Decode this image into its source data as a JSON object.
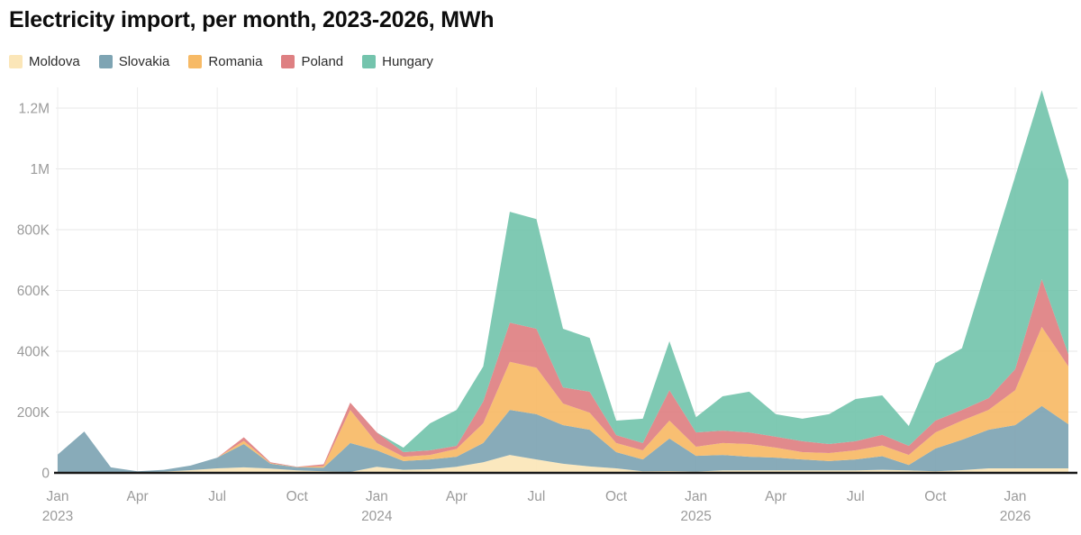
{
  "header": {
    "title": "Electricity import, per month, 2023-2026, MWh"
  },
  "colors": {
    "title": "#0d0d0d",
    "legend_text": "#2b2b2b",
    "axis_label": "#9b9b9b",
    "gridline_h": "#e7e7e7",
    "gridline_v": "#ededed",
    "baseline": "#1a1a1a",
    "background": "#ffffff"
  },
  "chart_data": {
    "type": "area",
    "stacked": true,
    "title": "Electricity import, per month, 2023-2026, MWh",
    "unit": "MWh",
    "grid": true,
    "legend_position": "top-left",
    "ylim": [
      0,
      1260000
    ],
    "x": [
      "Jan 2023",
      "Feb 2023",
      "Mar 2023",
      "Apr 2023",
      "May 2023",
      "Jun 2023",
      "Jul 2023",
      "Aug 2023",
      "Sep 2023",
      "Oct 2023",
      "Nov 2023",
      "Dec 2023",
      "Jan 2024",
      "Feb 2024",
      "Mar 2024",
      "Apr 2024",
      "May 2024",
      "Jun 2024",
      "Jul 2024",
      "Aug 2024",
      "Sep 2024",
      "Oct 2024",
      "Nov 2024",
      "Dec 2024",
      "Jan 2025",
      "Feb 2025",
      "Mar 2025",
      "Apr 2025",
      "May 2025",
      "Jun 2025",
      "Jul 2025",
      "Aug 2025",
      "Sep 2025",
      "Oct 2025",
      "Nov 2025",
      "Dec 2025",
      "Jan 2026",
      "Feb 2026",
      "Mar 2026"
    ],
    "x_ticks": [
      {
        "index": 0,
        "month": "Jan",
        "year": "2023"
      },
      {
        "index": 3,
        "month": "Apr",
        "year": ""
      },
      {
        "index": 6,
        "month": "Jul",
        "year": ""
      },
      {
        "index": 9,
        "month": "Oct",
        "year": ""
      },
      {
        "index": 12,
        "month": "Jan",
        "year": "2024"
      },
      {
        "index": 15,
        "month": "Apr",
        "year": ""
      },
      {
        "index": 18,
        "month": "Jul",
        "year": ""
      },
      {
        "index": 21,
        "month": "Oct",
        "year": ""
      },
      {
        "index": 24,
        "month": "Jan",
        "year": "2025"
      },
      {
        "index": 27,
        "month": "Apr",
        "year": ""
      },
      {
        "index": 30,
        "month": "Jul",
        "year": ""
      },
      {
        "index": 33,
        "month": "Oct",
        "year": ""
      },
      {
        "index": 36,
        "month": "Jan",
        "year": "2026"
      }
    ],
    "y_ticks": [
      {
        "value": 0,
        "label": "0"
      },
      {
        "value": 200000,
        "label": "200K"
      },
      {
        "value": 400000,
        "label": "400K"
      },
      {
        "value": 600000,
        "label": "600K"
      },
      {
        "value": 800000,
        "label": "800K"
      },
      {
        "value": 1000000,
        "label": "1M"
      },
      {
        "value": 1200000,
        "label": "1.2M"
      }
    ],
    "series": [
      {
        "name": "Moldova",
        "color": "#fbe6b8",
        "values": [
          2000,
          3000,
          2000,
          1000,
          4000,
          9000,
          15000,
          18000,
          14000,
          8000,
          5000,
          3000,
          20000,
          10000,
          12000,
          20000,
          35000,
          59000,
          44000,
          30000,
          21000,
          15000,
          5000,
          6000,
          4000,
          8000,
          8000,
          8000,
          8000,
          8000,
          8000,
          10000,
          8000,
          5000,
          9000,
          15000,
          15000,
          15000,
          15000
        ]
      },
      {
        "name": "Slovakia",
        "color": "#7ea4b3",
        "values": [
          58000,
          133000,
          16000,
          4000,
          6000,
          15000,
          35000,
          77000,
          16000,
          10000,
          12000,
          95000,
          54000,
          29000,
          32000,
          33000,
          63000,
          148000,
          149000,
          127000,
          121000,
          53000,
          39000,
          107000,
          52000,
          51000,
          45000,
          42000,
          36000,
          31000,
          36000,
          45000,
          18000,
          75000,
          100000,
          127000,
          142000,
          205000,
          145000
        ]
      },
      {
        "name": "Romania",
        "color": "#f7ba66",
        "values": [
          0,
          0,
          0,
          0,
          0,
          0,
          0,
          10000,
          2000,
          1000,
          5000,
          109000,
          24000,
          14000,
          15000,
          26000,
          65000,
          158000,
          153000,
          71000,
          56000,
          30000,
          30000,
          59000,
          30000,
          39000,
          42000,
          33000,
          24000,
          26000,
          30000,
          35000,
          33000,
          53000,
          63000,
          65000,
          115000,
          260000,
          190000
        ]
      },
      {
        "name": "Poland",
        "color": "#de8082",
        "values": [
          0,
          0,
          0,
          0,
          0,
          0,
          0,
          12000,
          3000,
          1000,
          6000,
          24000,
          35000,
          15000,
          15000,
          10000,
          72000,
          129000,
          128000,
          53000,
          69000,
          26000,
          24000,
          100000,
          47000,
          41000,
          38000,
          36000,
          36000,
          30000,
          30000,
          35000,
          30000,
          39000,
          35000,
          39000,
          69000,
          157000,
          40000
        ]
      },
      {
        "name": "Hungary",
        "color": "#74c4ad",
        "values": [
          0,
          0,
          0,
          0,
          0,
          0,
          0,
          0,
          0,
          0,
          0,
          0,
          0,
          15000,
          89000,
          118000,
          115000,
          365000,
          361000,
          193000,
          177000,
          48000,
          80000,
          161000,
          50000,
          113000,
          134000,
          74000,
          74000,
          98000,
          139000,
          130000,
          65000,
          188000,
          203000,
          447000,
          634000,
          622000,
          573000
        ]
      }
    ]
  }
}
